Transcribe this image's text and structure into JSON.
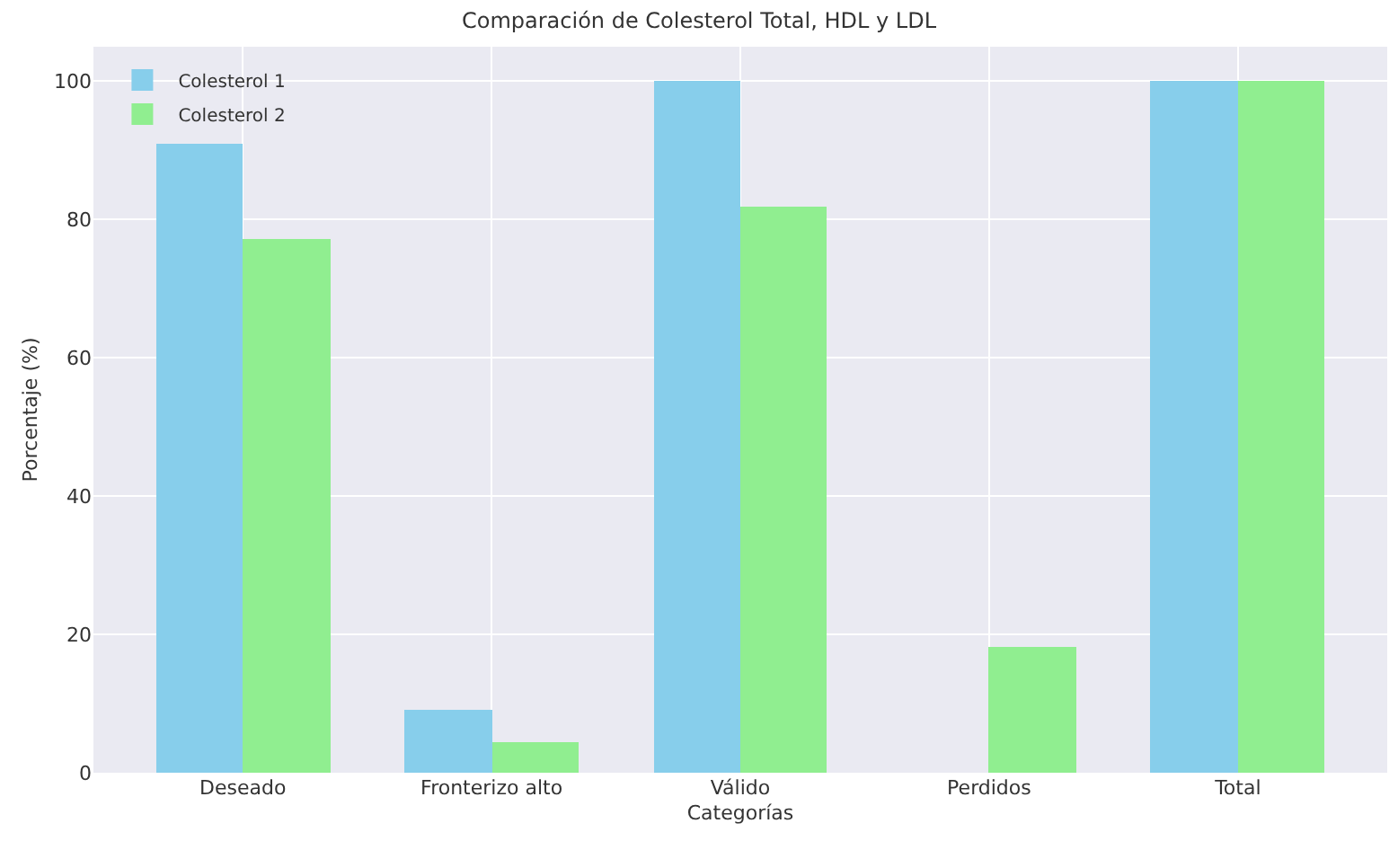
{
  "chart_data": {
    "type": "bar",
    "title": "Comparación de Colesterol Total, HDL y LDL",
    "xlabel": "Categorías",
    "ylabel": "Porcentaje (%)",
    "categories": [
      "Deseado",
      "Fronterizo alto",
      "Válido",
      "Perdidos",
      "Total"
    ],
    "series": [
      {
        "name": "Colesterol 1",
        "color": "#87ceeb",
        "values": [
          90.9,
          9.1,
          100,
          0,
          100
        ]
      },
      {
        "name": "Colesterol 2",
        "color": "#90ee90",
        "values": [
          77.3,
          4.5,
          81.8,
          18.2,
          100
        ]
      }
    ],
    "ylim": [
      0,
      105
    ],
    "yticks": [
      0,
      20,
      40,
      60,
      80,
      100
    ],
    "grid": true,
    "legend": "top left"
  }
}
